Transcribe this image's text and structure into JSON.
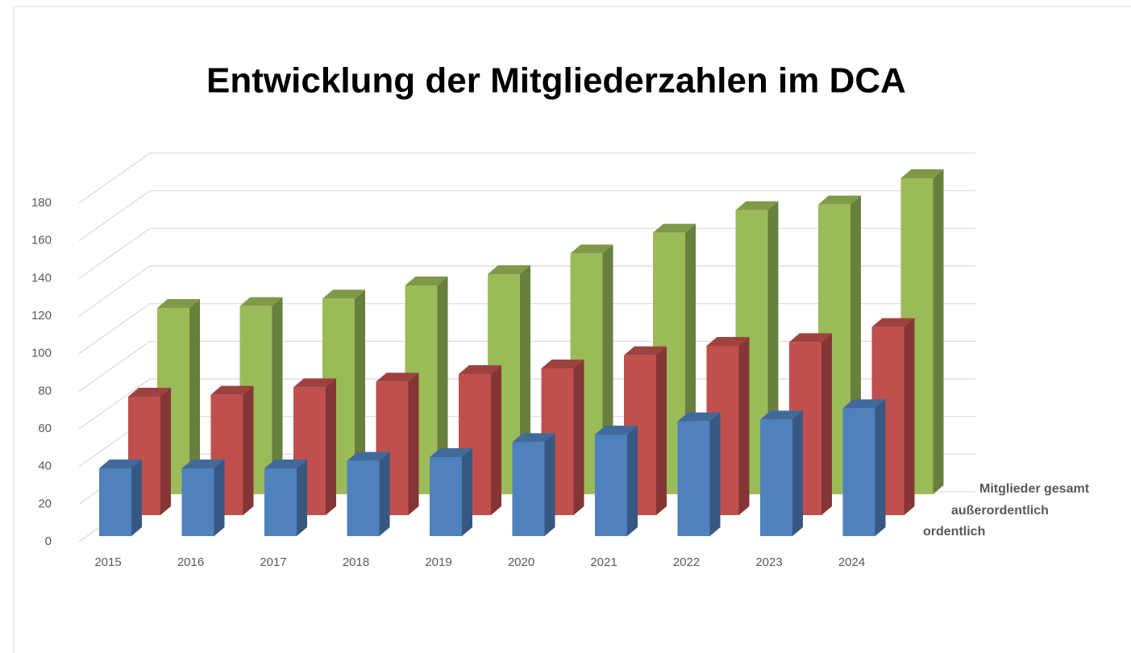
{
  "chart_data": {
    "type": "bar3d",
    "title": "Entwicklung der Mitgliederzahlen im DCA",
    "categories": [
      "2015",
      "2016",
      "2017",
      "2018",
      "2019",
      "2020",
      "2021",
      "2022",
      "2023",
      "2024"
    ],
    "series": [
      {
        "name": "ordentlich",
        "color": "#4f81bd",
        "values": [
          36,
          36,
          36,
          40,
          42,
          50,
          54,
          61,
          62,
          68
        ]
      },
      {
        "name": "außerordentlich",
        "color": "#c0504d",
        "values": [
          63,
          64,
          68,
          71,
          75,
          78,
          85,
          90,
          92,
          100
        ]
      },
      {
        "name": "Mitglieder gesamt",
        "color": "#9bbb59",
        "values": [
          99,
          100,
          104,
          111,
          117,
          128,
          139,
          151,
          154,
          168
        ]
      }
    ],
    "ylim": [
      0,
      180
    ],
    "yticks": [
      0,
      20,
      40,
      60,
      80,
      100,
      120,
      140,
      160,
      180
    ],
    "grid": true
  }
}
